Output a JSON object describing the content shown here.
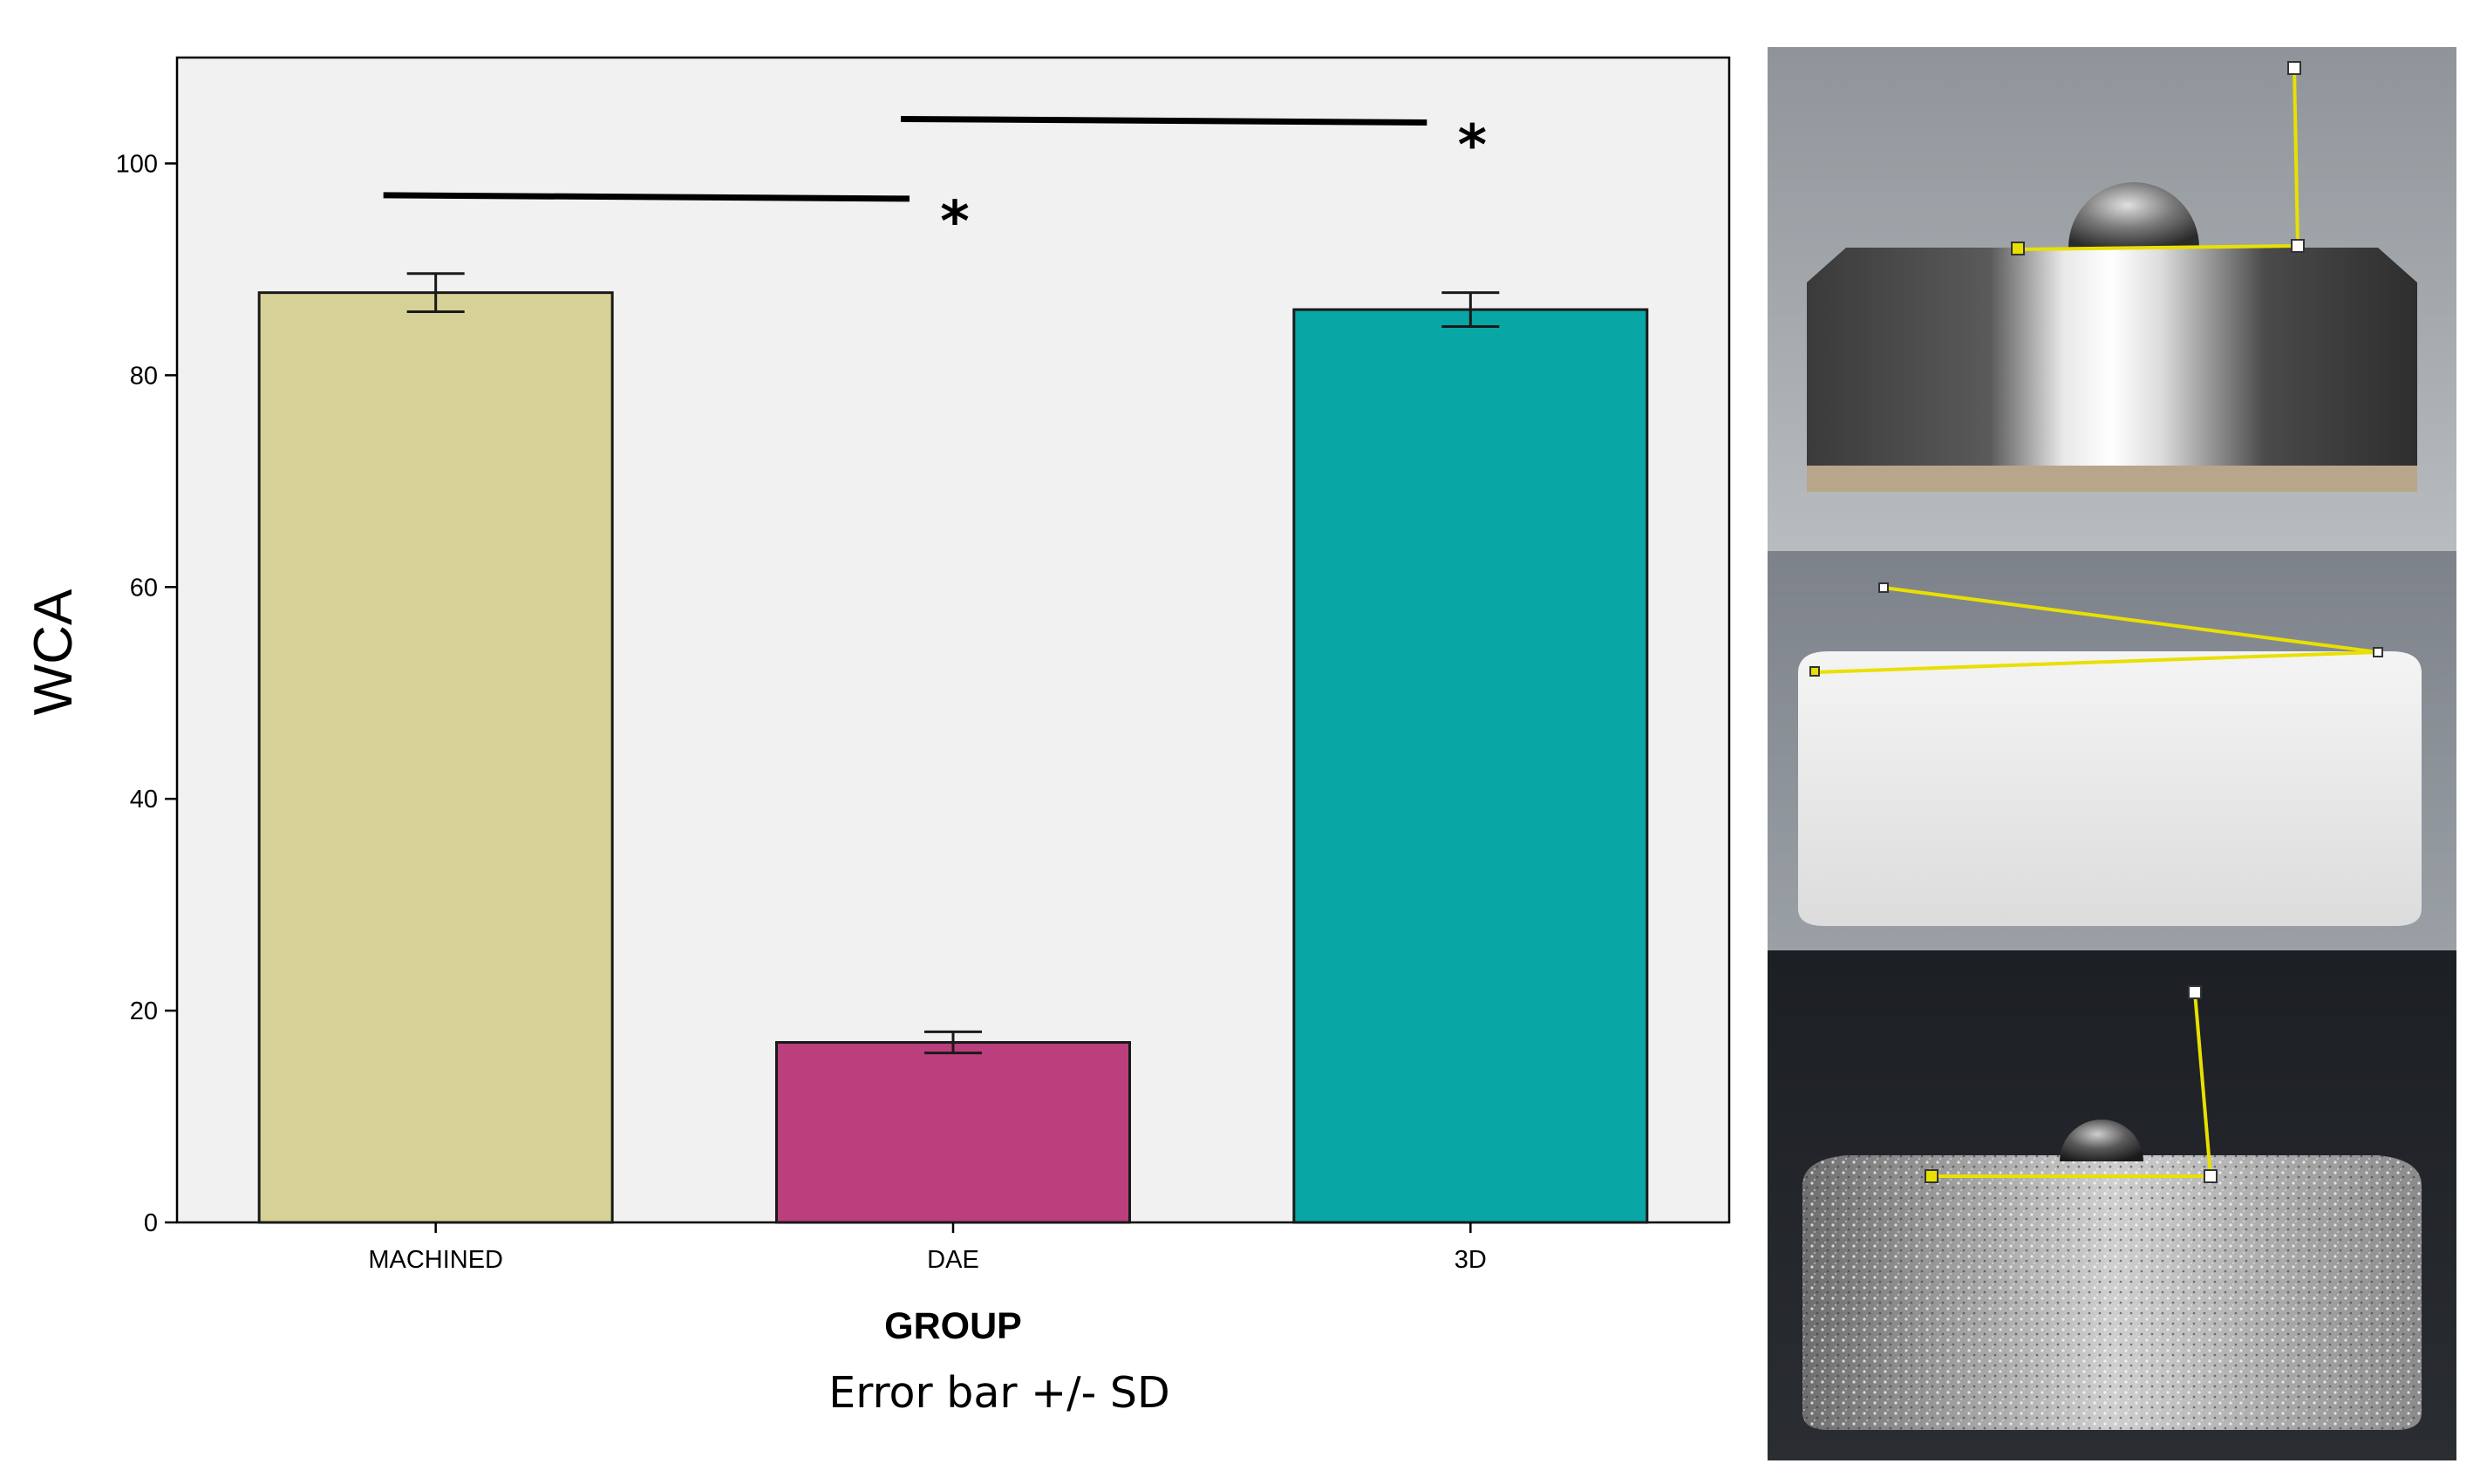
{
  "chart_data": {
    "type": "bar",
    "categories": [
      "MACHINED",
      "DAE",
      "3D"
    ],
    "values": [
      87.8,
      17.0,
      86.2
    ],
    "error_sd": [
      1.8,
      1.0,
      1.6
    ],
    "bar_colors": [
      "#d6d196",
      "#bb3f7c",
      "#08a6a4"
    ],
    "ylabel": "WCA",
    "xlabel": "GROUP",
    "note": "Error bar +/- SD",
    "ylim": [
      0,
      110
    ],
    "yticks": [
      0,
      20,
      40,
      60,
      80,
      100
    ],
    "grid": false,
    "background": "#f0f1f0",
    "significance": [
      {
        "from": "MACHINED",
        "to": "DAE",
        "y_data": 97,
        "label": "*"
      },
      {
        "from": "DAE",
        "to": "3D",
        "y_data": 104.2,
        "label": "*"
      }
    ]
  },
  "photos": [
    {
      "name": "machined-droplet-photo",
      "surface": "polished metal disc",
      "marker_color": "#e8e000"
    },
    {
      "name": "dae-droplet-photo",
      "surface": "white porous disc",
      "marker_color": "#e8e000"
    },
    {
      "name": "3d-droplet-photo",
      "surface": "rough textured metal disc",
      "marker_color": "#e8e000"
    }
  ]
}
